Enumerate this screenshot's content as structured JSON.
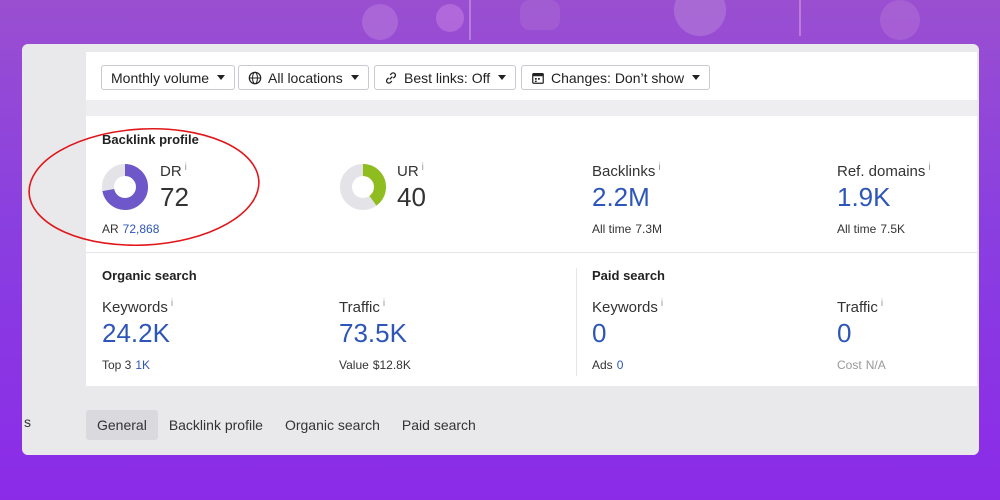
{
  "filters": {
    "volume_label": "Monthly volume",
    "locations_label": "All locations",
    "best_links_label": "Best links: Off",
    "changes_label": "Changes: Don’t show"
  },
  "backlink_profile": {
    "title": "Backlink profile",
    "dr": {
      "label": "DR",
      "value": "72",
      "fill_fraction": 0.72
    },
    "ar": {
      "label": "AR",
      "value": "72,868"
    },
    "ur": {
      "label": "UR",
      "value": "40",
      "fill_fraction": 0.4
    },
    "backlinks": {
      "label": "Backlinks",
      "value": "2.2M",
      "sub_label": "All time",
      "sub_value": "7.3M"
    },
    "ref_domains": {
      "label": "Ref. domains",
      "value": "1.9K",
      "sub_label": "All time",
      "sub_value": "7.5K"
    },
    "info_glyph": "i"
  },
  "organic_search": {
    "title": "Organic search",
    "keywords": {
      "label": "Keywords",
      "value": "24.2K",
      "sub_label": "Top 3",
      "sub_value": "1K"
    },
    "traffic": {
      "label": "Traffic",
      "value": "73.5K",
      "sub_label": "Value",
      "sub_value": "$12.8K"
    }
  },
  "paid_search": {
    "title": "Paid search",
    "keywords": {
      "label": "Keywords",
      "value": "0",
      "sub_label": "Ads",
      "sub_value": "0"
    },
    "traffic": {
      "label": "Traffic",
      "value": "0",
      "sub_label": "Cost",
      "sub_value": "N/A"
    }
  },
  "tabs": [
    {
      "label": "General",
      "active": true
    },
    {
      "label": "Backlink profile"
    },
    {
      "label": "Organic search"
    },
    {
      "label": "Paid search"
    }
  ],
  "left_edge_text": "s",
  "colors": {
    "dr_donut": "#6e57c8",
    "ur_donut": "#8fbc1e",
    "donut_track": "#e4e4e8",
    "link_blue": "#2e56b8",
    "highlight_circle": "#e0161a"
  },
  "icons": {
    "locations": "globe-icon",
    "best_links": "link-icon",
    "changes": "calendar-icon",
    "dropdown": "caret-down-icon"
  }
}
